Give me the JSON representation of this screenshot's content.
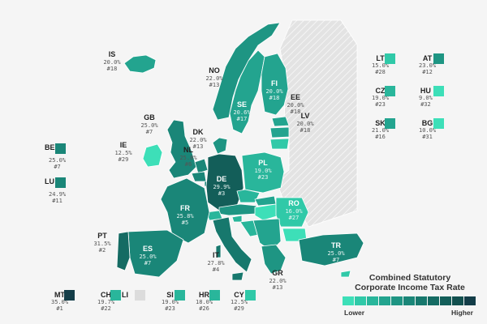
{
  "colors": {
    "background": "#f5f5f5",
    "no_data": "#dcdcdc",
    "scale": [
      "#3ddfb8",
      "#30c9a8",
      "#29b69b",
      "#23a48f",
      "#1e9583",
      "#1a8678",
      "#17786d",
      "#156b63",
      "#135e59",
      "#12504f",
      "#133d48"
    ]
  },
  "map_labels": [
    {
      "code": "IS",
      "rate": "20.0%",
      "rank": "#18"
    },
    {
      "code": "NO",
      "rate": "22.0%",
      "rank": "#13"
    },
    {
      "code": "FI",
      "rate": "20.0%",
      "rank": "#18"
    },
    {
      "code": "SE",
      "rate": "20.6%",
      "rank": "#17"
    },
    {
      "code": "EE",
      "rate": "20.0%",
      "rank": "#18"
    },
    {
      "code": "LV",
      "rate": "20.0%",
      "rank": "#18"
    },
    {
      "code": "GB",
      "rate": "25.0%",
      "rank": "#7"
    },
    {
      "code": "DK",
      "rate": "22.0%",
      "rank": "#13"
    },
    {
      "code": "IE",
      "rate": "12.5%",
      "rank": "#29"
    },
    {
      "code": "NL",
      "rate": "25.8%",
      "rank": "#6"
    },
    {
      "code": "DE",
      "rate": "29.9%",
      "rank": "#3"
    },
    {
      "code": "PL",
      "rate": "19.0%",
      "rank": "#23"
    },
    {
      "code": "FR",
      "rate": "25.8%",
      "rank": "#5"
    },
    {
      "code": "RO",
      "rate": "16.0%",
      "rank": "#27"
    },
    {
      "code": "PT",
      "rate": "31.5%",
      "rank": "#2"
    },
    {
      "code": "ES",
      "rate": "25.0%",
      "rank": "#7"
    },
    {
      "code": "IT",
      "rate": "27.8%",
      "rank": "#4"
    },
    {
      "code": "TR",
      "rate": "25.0%",
      "rank": "#7"
    },
    {
      "code": "GR",
      "rate": "22.0%",
      "rank": "#13"
    }
  ],
  "boxed_left": [
    {
      "code": "BE",
      "rate": "25.0%",
      "rank": "#7"
    },
    {
      "code": "LU",
      "rate": "24.9%",
      "rank": "#11"
    }
  ],
  "boxed_right": [
    {
      "code": "LT",
      "rate": "15.0%",
      "rank": "#28"
    },
    {
      "code": "AT",
      "rate": "23.0%",
      "rank": "#12"
    },
    {
      "code": "CZ",
      "rate": "19.0%",
      "rank": "#23"
    },
    {
      "code": "HU",
      "rate": "9.0%",
      "rank": "#32"
    },
    {
      "code": "SK",
      "rate": "21.0%",
      "rank": "#16"
    },
    {
      "code": "BG",
      "rate": "10.0%",
      "rank": "#31"
    }
  ],
  "boxed_bottom": [
    {
      "code": "MT",
      "rate": "35.0%",
      "rank": "#1"
    },
    {
      "code": "CH",
      "rate": "19.7%",
      "rank": "#22"
    },
    {
      "code": "LI",
      "rate": "",
      "rank": ""
    },
    {
      "code": "SI",
      "rate": "19.0%",
      "rank": "#23"
    },
    {
      "code": "HR",
      "rate": "18.0%",
      "rank": "#26"
    },
    {
      "code": "CY",
      "rate": "12.5%",
      "rank": "#29"
    }
  ],
  "legend": {
    "title_line1": "Combined Statutory",
    "title_line2": "Corporate Income Tax Rate",
    "low_label": "Lower",
    "high_label": "Higher"
  }
}
